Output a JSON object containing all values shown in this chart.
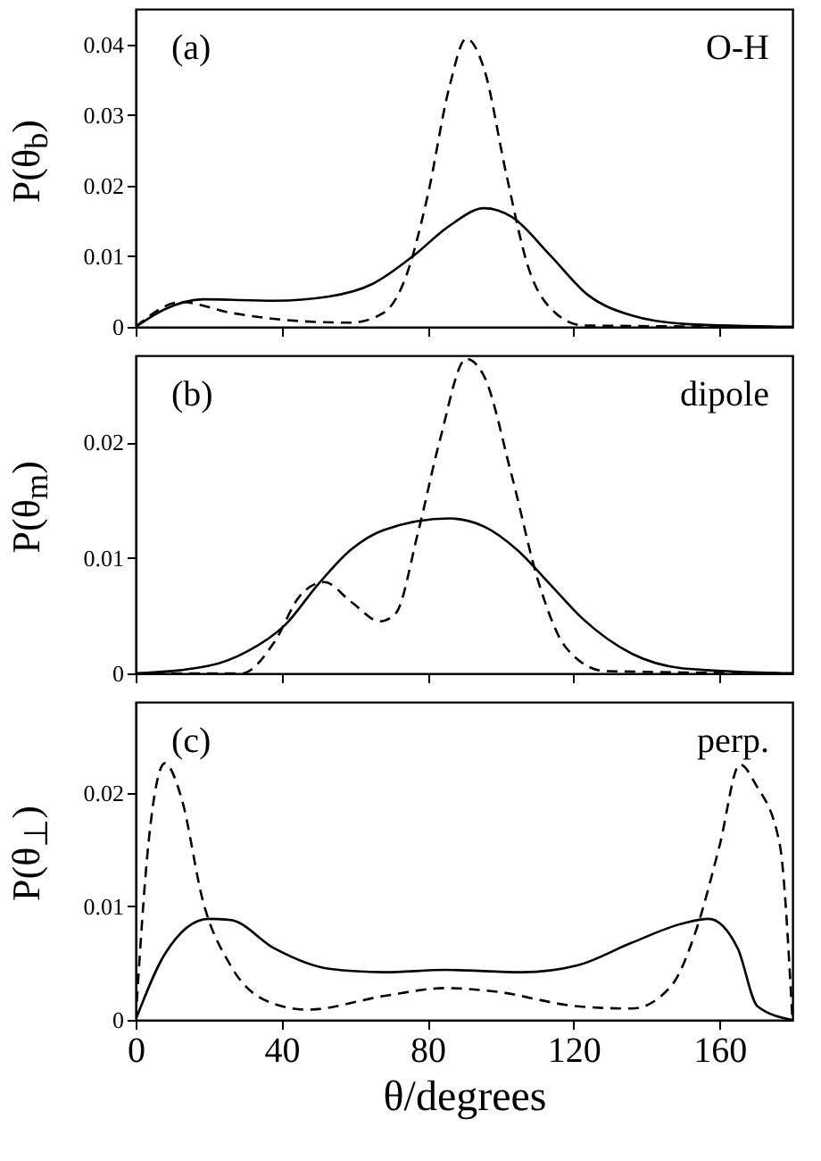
{
  "chart_data": [
    {
      "type": "line",
      "ylabel": "P(θ$_{b}$)",
      "annotations": [
        "(a)",
        "O-H"
      ],
      "xlim": [
        0,
        180
      ],
      "xticks": [
        0,
        40,
        80,
        120,
        160
      ],
      "ylim": [
        0,
        0.045
      ],
      "yticks": [
        0,
        0.01,
        0.02,
        0.03,
        0.04
      ],
      "tick_labels": "y",
      "series": [
        {
          "color": "#000000",
          "line_style": "solid",
          "x": [
            0,
            8,
            18.5,
            38,
            53,
            65,
            76,
            86,
            95.5,
            103,
            113.5,
            124,
            136,
            151,
            180
          ],
          "values": [
            0,
            0.0025,
            0.0039,
            0.0037,
            0.0043,
            0.0061,
            0.01,
            0.0143,
            0.0168,
            0.0156,
            0.0102,
            0.0045,
            0.0016,
            0.0004,
            0
          ]
        },
        {
          "color": "#000000",
          "line_style": "dashed",
          "x": [
            0,
            12.5,
            26,
            45.7,
            59,
            68,
            74,
            80,
            86,
            90.6,
            95.5,
            101.5,
            107.5,
            115,
            122.6,
            180
          ],
          "values": [
            0,
            0.0035,
            0.002,
            0.0008,
            0.0006,
            0.002,
            0.007,
            0.0185,
            0.034,
            0.0408,
            0.0365,
            0.0218,
            0.0086,
            0.002,
            0.0002,
            0
          ]
        }
      ]
    },
    {
      "type": "line",
      "ylabel": "P(θ$_{m}$)",
      "annotations": [
        "(b)",
        "dipole"
      ],
      "xlim": [
        0,
        180
      ],
      "xticks": [
        0,
        40,
        80,
        120,
        160
      ],
      "ylim": [
        0,
        0.0275
      ],
      "yticks": [
        0,
        0.01,
        0.02
      ],
      "tick_labels": "y",
      "series": [
        {
          "color": "#000000",
          "line_style": "solid",
          "x": [
            0,
            20,
            30.6,
            41,
            50,
            59,
            68,
            86,
            95.5,
            104.5,
            113.6,
            122.6,
            136,
            151,
            180
          ],
          "values": [
            0,
            0.00065,
            0.0019,
            0.0042,
            0.0077,
            0.0107,
            0.0124,
            0.0134,
            0.0127,
            0.0107,
            0.0077,
            0.0047,
            0.0017,
            0.0004,
            0
          ]
        },
        {
          "color": "#000000",
          "line_style": "dashed",
          "x": [
            0,
            29,
            38,
            45,
            51.7,
            59,
            67,
            71.3,
            77.4,
            83.4,
            90.6,
            95.5,
            103,
            110.6,
            118,
            128.7,
            180
          ],
          "values": [
            0,
            0,
            0.0027,
            0.0067,
            0.0079,
            0.0062,
            0.0045,
            0.0052,
            0.0122,
            0.0202,
            0.0272,
            0.0257,
            0.0172,
            0.0077,
            0.0022,
            0.0002,
            0
          ]
        }
      ]
    },
    {
      "type": "line",
      "ylabel": "P(θ$_{⊥}$)",
      "xlabel": "θ/degrees",
      "annotations": [
        "(c)",
        "perp."
      ],
      "xlim": [
        0,
        180
      ],
      "xticks": [
        0,
        40,
        80,
        120,
        160
      ],
      "ylim": [
        0,
        0.028
      ],
      "yticks": [
        0,
        0.01,
        0.02
      ],
      "series": [
        {
          "color": "#000000",
          "line_style": "solid",
          "x": [
            0,
            8,
            20,
            26,
            38,
            53,
            68,
            85,
            106,
            121,
            136,
            150,
            157,
            165,
            170.4,
            180
          ],
          "values": [
            0,
            0.0058,
            0.0089,
            0.0088,
            0.0063,
            0.0045,
            0.0042,
            0.0044,
            0.0042,
            0.0048,
            0.0068,
            0.0085,
            0.0089,
            0.0063,
            0.0012,
            0
          ]
        },
        {
          "color": "#000000",
          "line_style": "dashed",
          "x": [
            0,
            3.5,
            8,
            12.5,
            18.5,
            26,
            38,
            47,
            68,
            85,
            98.5,
            121,
            136,
            146.8,
            153.5,
            160,
            165.6,
            170,
            176.5,
            180
          ],
          "values": [
            0,
            0.0155,
            0.0226,
            0.0196,
            0.0104,
            0.0048,
            0.0014,
            0.0009,
            0.0021,
            0.0028,
            0.0025,
            0.0012,
            0.001,
            0.003,
            0.0078,
            0.0153,
            0.0225,
            0.0207,
            0.0155,
            0
          ]
        }
      ]
    }
  ]
}
